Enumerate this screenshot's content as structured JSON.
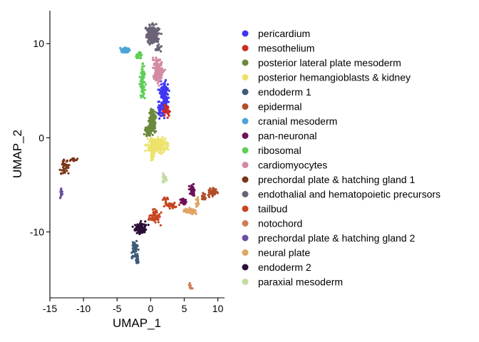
{
  "chart_data": {
    "type": "scatter",
    "xlabel": "UMAP_1",
    "ylabel": "UMAP_2",
    "xlim": [
      -15,
      11
    ],
    "ylim": [
      -17,
      13.5
    ],
    "x_ticks": [
      "-15",
      "-10",
      "-5",
      "0",
      "5",
      "10"
    ],
    "y_ticks": [
      "10",
      "0",
      "-10"
    ],
    "x_tick_values": [
      -15,
      -10,
      -5,
      0,
      5,
      10
    ],
    "y_tick_values": [
      10,
      0,
      -10
    ],
    "grid": false,
    "legend_position": "right",
    "series": [
      {
        "name": "pericardium",
        "color": "#3f37f5",
        "clusters": [
          [
            2.0,
            4.5,
            0.6,
            1.2,
            130
          ],
          [
            1.6,
            2.8,
            0.5,
            0.6,
            40
          ]
        ]
      },
      {
        "name": "mesothelium",
        "color": "#cc2b2b",
        "clusters": [
          [
            2.4,
            2.8,
            0.4,
            0.5,
            40
          ]
        ]
      },
      {
        "name": "posterior lateral plate mesoderm",
        "color": "#6a8a3c",
        "clusters": [
          [
            0.2,
            1.8,
            0.5,
            1.0,
            120
          ],
          [
            -0.2,
            0.7,
            0.6,
            0.5,
            80
          ]
        ]
      },
      {
        "name": "posterior hemangioblasts & kidney",
        "color": "#ede26a",
        "clusters": [
          [
            1.0,
            -0.8,
            1.3,
            0.8,
            220
          ],
          [
            0.3,
            -2.0,
            0.3,
            0.5,
            20
          ]
        ]
      },
      {
        "name": "endoderm 1",
        "color": "#3e5b78",
        "clusters": [
          [
            -2.4,
            -11.8,
            0.4,
            0.9,
            70
          ],
          [
            -2.0,
            -13.0,
            0.3,
            0.4,
            20
          ]
        ]
      },
      {
        "name": "epidermal",
        "color": "#b04e28",
        "clusters": [
          [
            9.3,
            -5.8,
            0.6,
            0.35,
            70
          ],
          [
            8.0,
            -6.2,
            0.3,
            0.3,
            20
          ]
        ]
      },
      {
        "name": "cranial mesoderm",
        "color": "#4da4d8",
        "clusters": [
          [
            -3.8,
            9.3,
            0.6,
            0.25,
            45
          ]
        ]
      },
      {
        "name": "pan-neuronal",
        "color": "#6e1156",
        "clusters": [
          [
            6.2,
            -5.6,
            0.35,
            0.5,
            60
          ],
          [
            4.8,
            -6.8,
            0.4,
            0.3,
            30
          ]
        ]
      },
      {
        "name": "ribosomal",
        "color": "#5fcf57",
        "clusters": [
          [
            -1.2,
            6.0,
            0.3,
            1.8,
            90
          ],
          [
            -1.8,
            8.8,
            0.4,
            0.3,
            25
          ]
        ]
      },
      {
        "name": "cardiomyocytes",
        "color": "#d48aa4",
        "clusters": [
          [
            1.1,
            7.2,
            0.7,
            1.2,
            170
          ]
        ]
      },
      {
        "name": "prechordal plate & hatching gland 1",
        "color": "#7a3518",
        "clusters": [
          [
            -12.8,
            -3.0,
            0.6,
            0.8,
            40
          ],
          [
            -11.5,
            -2.3,
            0.5,
            0.2,
            15
          ]
        ]
      },
      {
        "name": "endothalial and hematopoietic precursors",
        "color": "#6c6378",
        "clusters": [
          [
            0.3,
            11.0,
            0.9,
            0.9,
            200
          ],
          [
            1.2,
            9.5,
            0.4,
            0.3,
            20
          ]
        ]
      },
      {
        "name": "tailbud",
        "color": "#c84421",
        "clusters": [
          [
            0.6,
            -8.3,
            0.7,
            0.6,
            60
          ],
          [
            3.0,
            -7.2,
            0.8,
            0.25,
            40
          ],
          [
            2.2,
            -6.5,
            0.3,
            0.3,
            10
          ]
        ]
      },
      {
        "name": "notochord",
        "color": "#cf7c55",
        "clusters": [
          [
            5.9,
            -15.8,
            0.2,
            0.3,
            10
          ]
        ]
      },
      {
        "name": "prechordal plate & hatching gland 2",
        "color": "#6a4ea0",
        "clusters": [
          [
            -13.3,
            -5.8,
            0.15,
            0.5,
            15
          ]
        ]
      },
      {
        "name": "neural plate",
        "color": "#e0a464",
        "clusters": [
          [
            5.9,
            -7.8,
            0.8,
            0.3,
            50
          ],
          [
            7.0,
            -6.8,
            0.2,
            0.5,
            15
          ]
        ]
      },
      {
        "name": "endoderm 2",
        "color": "#2a0f38",
        "clusters": [
          [
            -1.5,
            -9.6,
            0.8,
            0.5,
            110
          ]
        ]
      },
      {
        "name": "paraxial mesoderm",
        "color": "#c2dca4",
        "clusters": [
          [
            2.0,
            -4.3,
            0.3,
            0.5,
            20
          ]
        ]
      }
    ]
  }
}
